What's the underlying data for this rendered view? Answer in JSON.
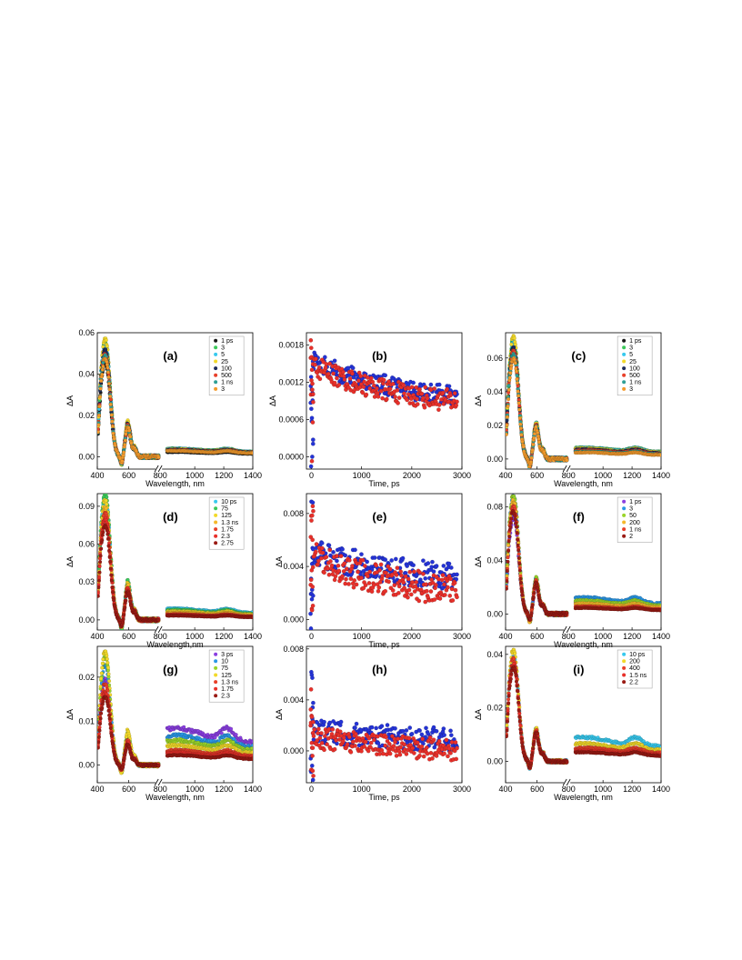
{
  "colors": {
    "black": "#1a1a1a",
    "green": "#3cc85a",
    "cyan": "#38c9ee",
    "yellow": "#f2d92a",
    "darkblue": "#1c2b5a",
    "red": "#e8402a",
    "teal": "#2f9f96",
    "orange": "#f39a2c",
    "purple": "#8a3fe0",
    "azure": "#2a97e6",
    "lime": "#9ad52a",
    "amber": "#f5b82a",
    "darkred": "#9a1b14",
    "blue": "#2433d6",
    "ptred": "#e8302a"
  },
  "chart_data": [
    {
      "id": "a",
      "type": "scatter",
      "title": "(a)",
      "xlabel": "Wavelength, nm",
      "ylabel": "ΔA",
      "xticks": [
        "400",
        "600",
        "800",
        "1000",
        "1200",
        "1400"
      ],
      "yticks": [
        "0.00",
        "0.02",
        "0.04",
        "0.06"
      ],
      "ylim": [
        -0.006,
        0.06
      ],
      "legend": [
        "1 ps",
        "3",
        "5",
        "25",
        "100",
        "500",
        "1 ns",
        "3"
      ],
      "legend_colors": [
        "black",
        "green",
        "cyan",
        "yellow",
        "darkblue",
        "red",
        "teal",
        "orange"
      ],
      "series": [
        {
          "name": "1 ps",
          "color": "black",
          "peak": 0.044,
          "ir": 0.002
        },
        {
          "name": "3",
          "color": "green",
          "peak": 0.053,
          "ir": 0.0035
        },
        {
          "name": "5",
          "color": "cyan",
          "peak": 0.052,
          "ir": 0.0034
        },
        {
          "name": "25",
          "color": "yellow",
          "peak": 0.055,
          "ir": 0.0032
        },
        {
          "name": "100",
          "color": "darkblue",
          "peak": 0.05,
          "ir": 0.003
        },
        {
          "name": "500",
          "color": "red",
          "peak": 0.048,
          "ir": 0.0028
        },
        {
          "name": "1 ns",
          "color": "teal",
          "peak": 0.047,
          "ir": 0.0026
        },
        {
          "name": "3",
          "color": "orange",
          "peak": 0.046,
          "ir": 0.0025
        }
      ]
    },
    {
      "id": "b",
      "type": "scatter",
      "title": "(b)",
      "xlabel": "Time, ps",
      "ylabel": "ΔA",
      "xticks": [
        "0",
        "1000",
        "2000",
        "3000"
      ],
      "xlim": [
        -100,
        3000
      ],
      "yticks": [
        "0.0000",
        "0.0006",
        "0.0012",
        "0.0018"
      ],
      "ylim": [
        -0.0002,
        0.002
      ],
      "series": [
        {
          "color": "blue",
          "start": 0.00155,
          "end": 0.00098,
          "peak": 0.0019
        },
        {
          "color": "ptred",
          "start": 0.00148,
          "end": 0.0009,
          "peak": 0.0019
        }
      ]
    },
    {
      "id": "c",
      "type": "scatter",
      "title": "(c)",
      "xlabel": "Wavelength, nm",
      "ylabel": "ΔA",
      "xticks": [
        "400",
        "600",
        "800",
        "1000",
        "1200",
        "1400"
      ],
      "yticks": [
        "0.00",
        "0.02",
        "0.04",
        "0.06"
      ],
      "ylim": [
        -0.006,
        0.075
      ],
      "legend": [
        "1 ps",
        "3",
        "5",
        "25",
        "100",
        "500",
        "1 ns",
        "3"
      ],
      "legend_colors": [
        "black",
        "green",
        "cyan",
        "yellow",
        "darkblue",
        "red",
        "teal",
        "orange"
      ],
      "series": [
        {
          "name": "1 ps",
          "color": "black",
          "peak": 0.06,
          "ir": 0.004
        },
        {
          "name": "3",
          "color": "green",
          "peak": 0.068,
          "ir": 0.006
        },
        {
          "name": "5",
          "color": "cyan",
          "peak": 0.067,
          "ir": 0.0058
        },
        {
          "name": "25",
          "color": "yellow",
          "peak": 0.07,
          "ir": 0.0055
        },
        {
          "name": "100",
          "color": "darkblue",
          "peak": 0.064,
          "ir": 0.005
        },
        {
          "name": "500",
          "color": "red",
          "peak": 0.062,
          "ir": 0.0045
        },
        {
          "name": "1 ns",
          "color": "teal",
          "peak": 0.06,
          "ir": 0.004
        },
        {
          "name": "3",
          "color": "orange",
          "peak": 0.058,
          "ir": 0.0035
        }
      ]
    },
    {
      "id": "d",
      "type": "scatter",
      "title": "(d)",
      "xlabel": "Wavelength,nm",
      "ylabel": "ΔA",
      "xticks": [
        "400",
        "600",
        "800",
        "1000",
        "1200",
        "1400"
      ],
      "yticks": [
        "0.00",
        "0.03",
        "0.06",
        "0.09"
      ],
      "ylim": [
        -0.008,
        0.1
      ],
      "legend": [
        "10 ps",
        "75",
        "125",
        "1.3 ns",
        "1.75",
        "2.3",
        "2.75"
      ],
      "legend_colors": [
        "cyan",
        "green",
        "yellow",
        "amber",
        "red",
        "ptred",
        "darkred"
      ],
      "series": [
        {
          "name": "10 ps",
          "color": "cyan",
          "peak": 0.094,
          "ir": 0.008
        },
        {
          "name": "75",
          "color": "green",
          "peak": 0.097,
          "ir": 0.007
        },
        {
          "name": "125",
          "color": "yellow",
          "peak": 0.092,
          "ir": 0.006
        },
        {
          "name": "1.3 ns",
          "color": "amber",
          "peak": 0.086,
          "ir": 0.005
        },
        {
          "name": "1.75",
          "color": "red",
          "peak": 0.082,
          "ir": 0.004
        },
        {
          "name": "2.3",
          "color": "ptred",
          "peak": 0.078,
          "ir": 0.0035
        },
        {
          "name": "2.75",
          "color": "darkred",
          "peak": 0.072,
          "ir": 0.003
        }
      ]
    },
    {
      "id": "e",
      "type": "scatter",
      "title": "(e)",
      "xlabel": "Time, ps",
      "ylabel": "ΔA",
      "xticks": [
        "0",
        "1000",
        "2000",
        "3000"
      ],
      "xlim": [
        -100,
        3000
      ],
      "yticks": [
        "0.000",
        "0.004",
        "0.008"
      ],
      "ylim": [
        -0.0008,
        0.0095
      ],
      "series": [
        {
          "color": "blue",
          "start": 0.0052,
          "end": 0.0032,
          "peak": 0.009
        },
        {
          "color": "ptred",
          "start": 0.0047,
          "end": 0.0022,
          "peak": 0.0088
        }
      ]
    },
    {
      "id": "f",
      "type": "scatter",
      "title": "(f)",
      "xlabel": "Wavelength, nm",
      "ylabel": "ΔA",
      "xticks": [
        "400",
        "600",
        "800",
        "1000",
        "1200",
        "1400"
      ],
      "yticks": [
        "0.00",
        "0.04",
        "0.08"
      ],
      "ylim": [
        -0.012,
        0.09
      ],
      "legend": [
        "1 ps",
        "3",
        "50",
        "200",
        "1 ns",
        "2"
      ],
      "legend_colors": [
        "purple",
        "azure",
        "lime",
        "amber",
        "red",
        "darkred"
      ],
      "series": [
        {
          "name": "1 ps",
          "color": "purple",
          "peak": 0.07,
          "ir": 0.008
        },
        {
          "name": "3",
          "color": "azure",
          "peak": 0.085,
          "ir": 0.011
        },
        {
          "name": "50",
          "color": "lime",
          "peak": 0.086,
          "ir": 0.009
        },
        {
          "name": "200",
          "color": "amber",
          "peak": 0.082,
          "ir": 0.007
        },
        {
          "name": "1 ns",
          "color": "red",
          "peak": 0.078,
          "ir": 0.005
        },
        {
          "name": "2",
          "color": "darkred",
          "peak": 0.074,
          "ir": 0.004
        }
      ]
    },
    {
      "id": "g",
      "type": "scatter",
      "title": "(g)",
      "xlabel": "Wavelength, nm",
      "ylabel": "ΔA",
      "xticks": [
        "400",
        "600",
        "800",
        "1000",
        "1200",
        "1400"
      ],
      "yticks": [
        "0.00",
        "0.01",
        "0.02"
      ],
      "ylim": [
        -0.004,
        0.027
      ],
      "legend": [
        "3 ps",
        "10",
        "75",
        "125",
        "1.3 ns",
        "1.75",
        "2.3"
      ],
      "legend_colors": [
        "purple",
        "azure",
        "lime",
        "yellow",
        "red",
        "ptred",
        "darkred"
      ],
      "series": [
        {
          "name": "3 ps",
          "color": "purple",
          "peak": 0.019,
          "ir": 0.0075
        },
        {
          "name": "10",
          "color": "azure",
          "peak": 0.022,
          "ir": 0.006
        },
        {
          "name": "75",
          "color": "lime",
          "peak": 0.024,
          "ir": 0.005
        },
        {
          "name": "125",
          "color": "yellow",
          "peak": 0.025,
          "ir": 0.004
        },
        {
          "name": "1.3 ns",
          "color": "red",
          "peak": 0.018,
          "ir": 0.003
        },
        {
          "name": "1.75",
          "color": "ptred",
          "peak": 0.016,
          "ir": 0.0025
        },
        {
          "name": "2.3",
          "color": "darkred",
          "peak": 0.015,
          "ir": 0.002
        }
      ]
    },
    {
      "id": "h",
      "type": "scatter",
      "title": "(h)",
      "xlabel": "Time, ps",
      "ylabel": "ΔA",
      "xticks": [
        "0",
        "1000",
        "2000",
        "3000"
      ],
      "xlim": [
        -100,
        3000
      ],
      "yticks": [
        "0.000",
        "0.004",
        "0.008"
      ],
      "ylim": [
        -0.0025,
        0.0082
      ],
      "series": [
        {
          "color": "blue",
          "start": 0.0016,
          "end": 0.0009,
          "peak": 0.0062
        },
        {
          "color": "ptred",
          "start": 0.0011,
          "end": 0.0001,
          "peak": 0.005
        }
      ]
    },
    {
      "id": "i",
      "type": "scatter",
      "title": "(i)",
      "xlabel": "Wavelength, nm",
      "ylabel": "ΔA",
      "xticks": [
        "400",
        "600",
        "800",
        "1000",
        "1200",
        "1400"
      ],
      "yticks": [
        "0.00",
        "0.02",
        "0.04"
      ],
      "ylim": [
        -0.008,
        0.043
      ],
      "legend": [
        "10 ps",
        "200",
        "400",
        "1.5 ns",
        "2.2"
      ],
      "legend_colors": [
        "cyan",
        "yellow",
        "red",
        "ptred",
        "darkred"
      ],
      "series": [
        {
          "name": "10 ps",
          "color": "cyan",
          "peak": 0.038,
          "ir": 0.008
        },
        {
          "name": "200",
          "color": "yellow",
          "peak": 0.04,
          "ir": 0.006
        },
        {
          "name": "400",
          "color": "red",
          "peak": 0.037,
          "ir": 0.0045
        },
        {
          "name": "1.5 ns",
          "color": "ptred",
          "peak": 0.035,
          "ir": 0.0035
        },
        {
          "name": "2.2",
          "color": "darkred",
          "peak": 0.034,
          "ir": 0.003
        }
      ]
    }
  ]
}
